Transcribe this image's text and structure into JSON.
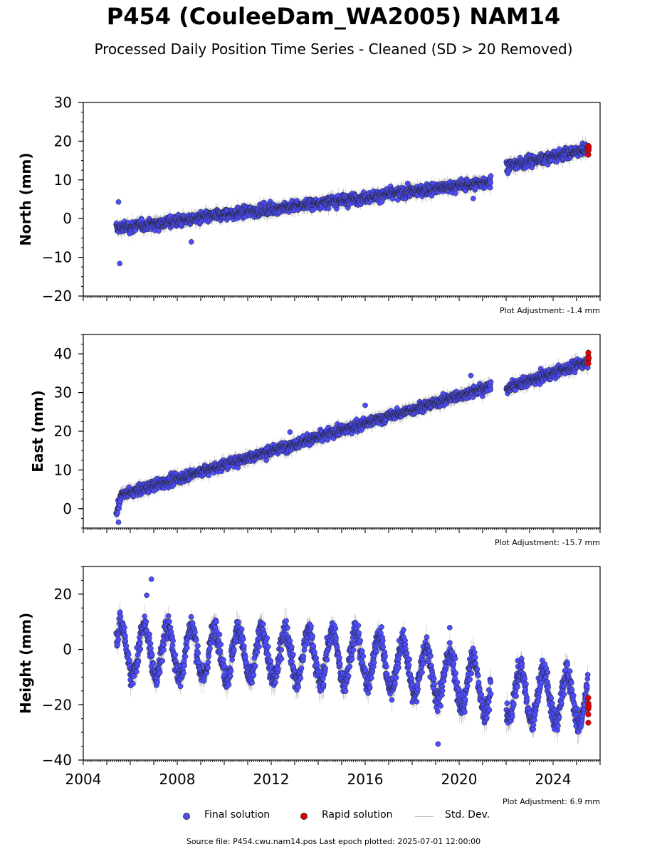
{
  "title": "P454 (CouleeDam_WA2005) NAM14",
  "subtitle": "Processed Daily Position Time Series - Cleaned (SD > 20 Removed)",
  "legend": {
    "final_label": "Final solution",
    "rapid_label": "Rapid solution",
    "std_label": "Std. Dev.",
    "final_color": "#4d4dff",
    "rapid_color": "#e00000",
    "std_color": "#bbbbbb"
  },
  "source_note": "Source file: P454.cwu.nam14.pos  Last epoch plotted: 2025-07-01 12:00:00",
  "chart_data": [
    {
      "type": "scatter",
      "ylabel": "North (mm)",
      "ylim": [
        -20,
        30
      ],
      "yticks": [
        -20,
        -10,
        0,
        10,
        20,
        30
      ],
      "xlim": [
        2004.0,
        2026.0
      ],
      "adjustment": "Plot Adjustment: -1.4 mm",
      "show_xticklabels": false,
      "gap": [
        2021.35,
        2022.0
      ],
      "trend": [
        [
          2005.4,
          -2.5
        ],
        [
          2021.3,
          9.5
        ],
        [
          2022.0,
          13.5
        ],
        [
          2025.5,
          18.0
        ]
      ],
      "noise": 1.2,
      "outliers": [
        [
          2005.55,
          -11.6
        ],
        [
          2005.5,
          4.3
        ],
        [
          2008.6,
          -6.0
        ],
        [
          2020.6,
          5.2
        ]
      ],
      "rapid": [
        [
          2025.5,
          16.5
        ],
        [
          2025.5,
          17.5
        ],
        [
          2025.5,
          18.2
        ],
        [
          2025.5,
          18.8
        ],
        [
          2025.52,
          17.9
        ],
        [
          2025.52,
          18.6
        ]
      ]
    },
    {
      "type": "scatter",
      "ylabel": "East (mm)",
      "ylim": [
        -5,
        45
      ],
      "yticks": [
        0,
        10,
        20,
        30,
        40
      ],
      "xlim": [
        2004.0,
        2026.0
      ],
      "adjustment": "Plot Adjustment: -15.7 mm",
      "show_xticklabels": false,
      "gap": [
        2021.35,
        2022.0
      ],
      "trend": [
        [
          2005.4,
          -1.5
        ],
        [
          2005.6,
          3.5
        ],
        [
          2021.3,
          31.5
        ],
        [
          2022.0,
          31.0
        ],
        [
          2025.5,
          38.0
        ]
      ],
      "noise": 1.1,
      "outliers": [
        [
          2005.5,
          -3.5
        ],
        [
          2012.8,
          19.8
        ],
        [
          2016.0,
          26.7
        ],
        [
          2020.5,
          34.4
        ]
      ],
      "rapid": [
        [
          2025.5,
          37.5
        ],
        [
          2025.5,
          38.5
        ],
        [
          2025.5,
          39.3
        ],
        [
          2025.5,
          40.3
        ],
        [
          2025.52,
          38.9
        ]
      ]
    },
    {
      "type": "scatter",
      "ylabel": "Height (mm)",
      "ylim": [
        -40,
        30
      ],
      "yticks": [
        -40,
        -20,
        0,
        20
      ],
      "xlim": [
        2004.0,
        2026.0
      ],
      "xticks": [
        2004,
        2008,
        2012,
        2016,
        2020,
        2024
      ],
      "adjustment": "Plot Adjustment: 6.9 mm",
      "show_xticklabels": true,
      "gap": [
        2021.35,
        2022.0
      ],
      "trend": [
        [
          2005.4,
          0.0
        ],
        [
          2016.0,
          -3.0
        ],
        [
          2021.3,
          -14.0
        ],
        [
          2022.0,
          -16.0
        ],
        [
          2025.5,
          -18.0
        ]
      ],
      "seasonal": 9.0,
      "noise": 3.5,
      "outliers": [
        [
          2006.9,
          25.4
        ],
        [
          2006.7,
          19.6
        ],
        [
          2019.1,
          -34.2
        ],
        [
          2019.6,
          7.9
        ]
      ],
      "rapid": [
        [
          2025.5,
          -17.5
        ],
        [
          2025.5,
          -19.5
        ],
        [
          2025.5,
          -21.5
        ],
        [
          2025.5,
          -23.5
        ],
        [
          2025.5,
          -26.5
        ],
        [
          2025.52,
          -20.5
        ]
      ]
    }
  ]
}
